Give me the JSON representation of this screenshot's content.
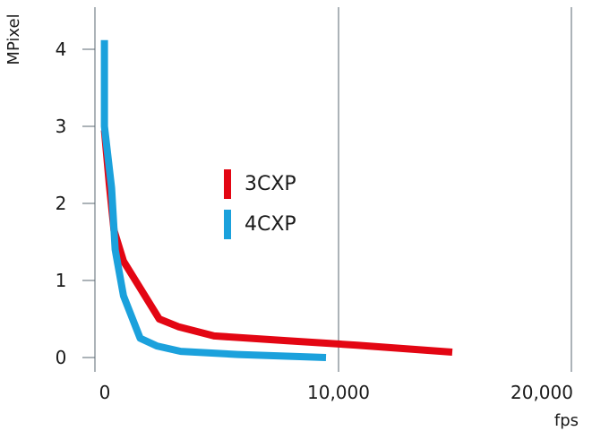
{
  "chart_data": {
    "type": "line",
    "xlabel": "fps",
    "ylabel": "MPixel",
    "xlim": [
      0,
      20000
    ],
    "ylim": [
      0,
      4.5
    ],
    "x_ticks": [
      "0",
      "10,000",
      "20,000"
    ],
    "y_ticks": [
      "0",
      "1",
      "2",
      "3",
      "4"
    ],
    "grid": "vertical",
    "legend_position": "center",
    "series": [
      {
        "name": "3CXP",
        "color": "#e30613",
        "points": [
          [
            400,
            2.95
          ],
          [
            600,
            2.25
          ],
          [
            800,
            1.65
          ],
          [
            1200,
            1.25
          ],
          [
            1800,
            0.95
          ],
          [
            2700,
            0.5
          ],
          [
            3500,
            0.4
          ],
          [
            5000,
            0.28
          ],
          [
            8000,
            0.22
          ],
          [
            11000,
            0.16
          ],
          [
            15000,
            0.07
          ]
        ]
      },
      {
        "name": "4CXP",
        "color": "#1ba1dc",
        "points": [
          [
            400,
            4.12
          ],
          [
            400,
            3.0
          ],
          [
            700,
            2.2
          ],
          [
            850,
            1.4
          ],
          [
            1200,
            0.8
          ],
          [
            1900,
            0.25
          ],
          [
            2600,
            0.15
          ],
          [
            3600,
            0.08
          ],
          [
            6000,
            0.04
          ],
          [
            9700,
            0.0
          ]
        ]
      }
    ]
  }
}
